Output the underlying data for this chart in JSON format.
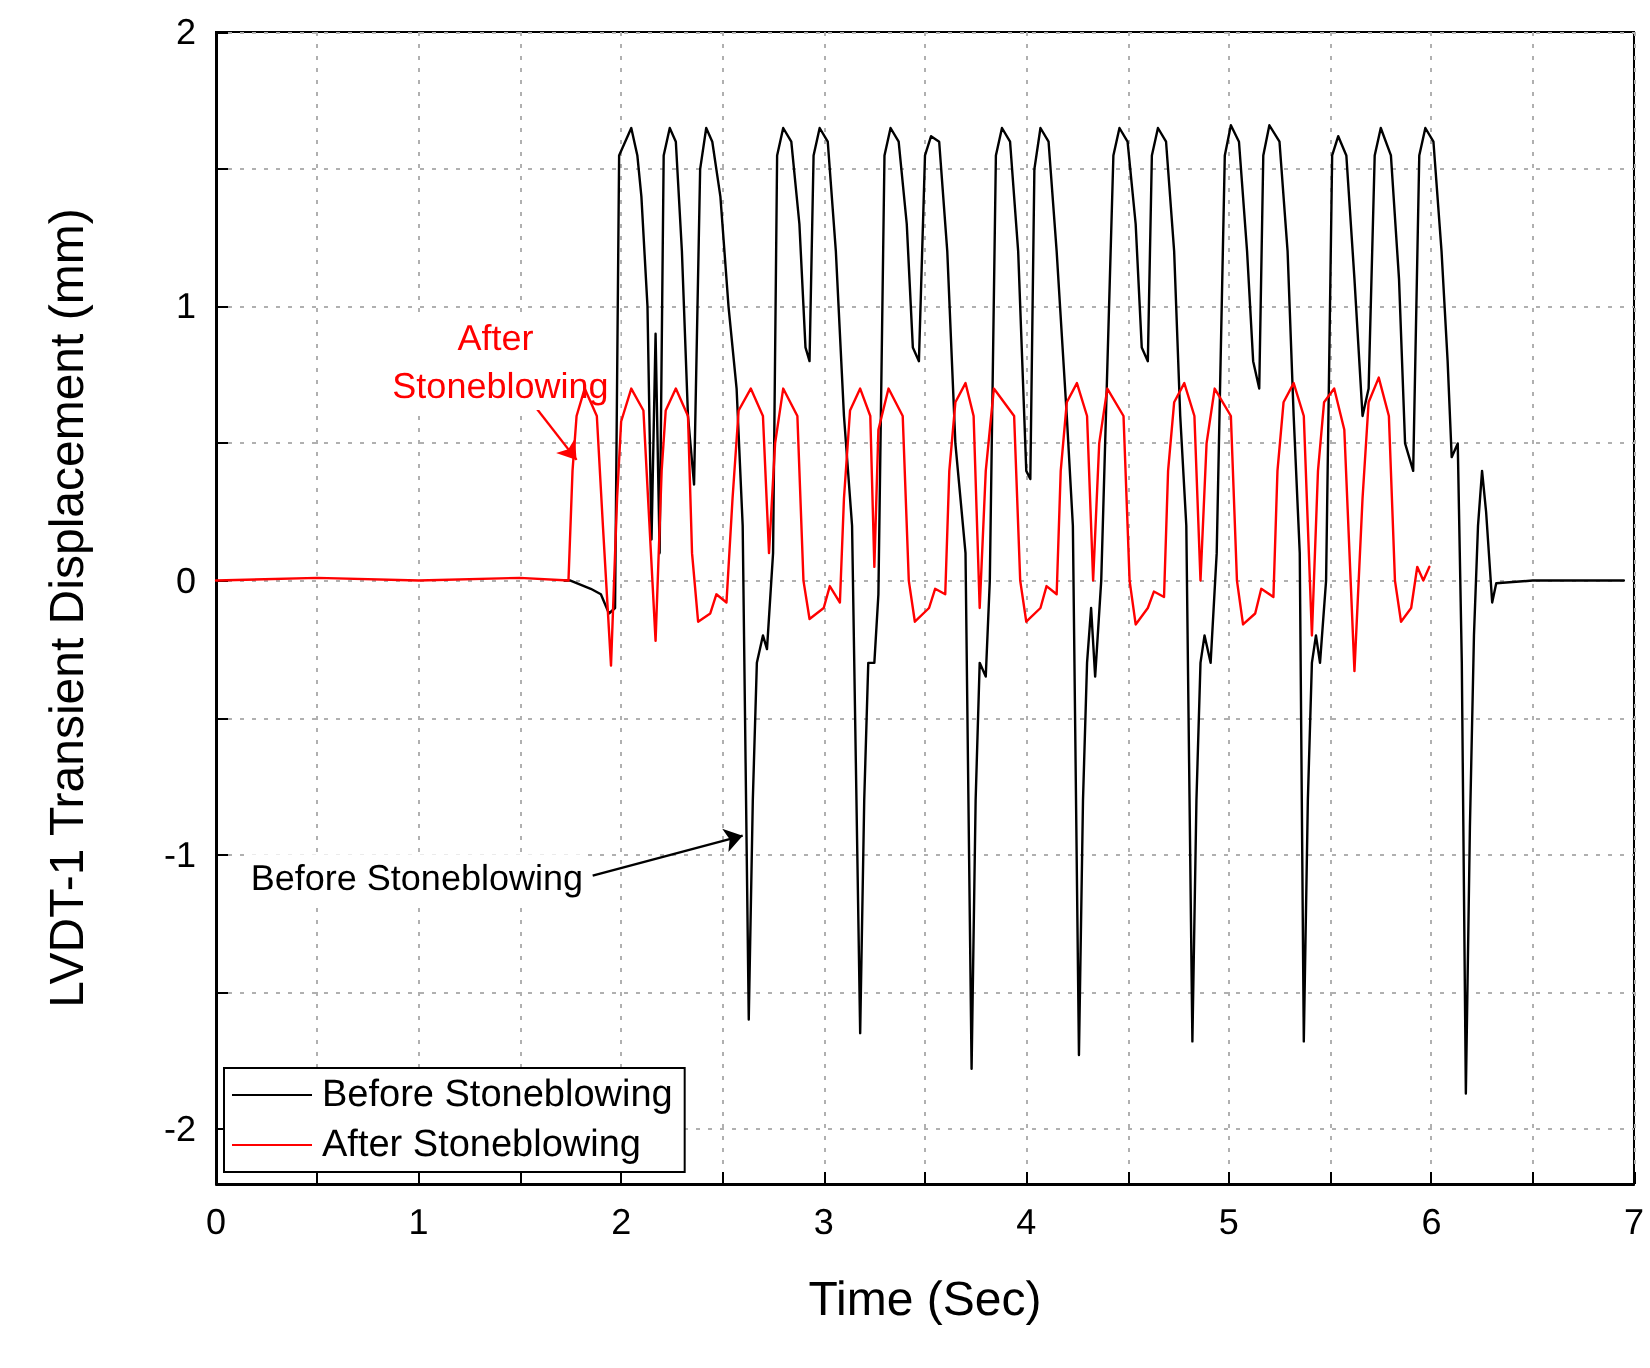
{
  "chart_data": {
    "type": "line",
    "xlabel": "Time (Sec)",
    "ylabel": "LVDT-1 Transient Displacement (mm)",
    "xlim": [
      0,
      7
    ],
    "ylim": [
      -2.2,
      2
    ],
    "xticks": [
      0,
      {
        "value": 0.5,
        "label": null
      },
      1,
      {
        "value": 1.5,
        "label": null
      },
      2,
      {
        "value": 2.5,
        "label": null
      },
      3,
      {
        "value": 3.5,
        "label": null
      },
      4,
      {
        "value": 4.5,
        "label": null
      },
      5,
      {
        "value": 5.5,
        "label": null
      },
      6,
      {
        "value": 6.5,
        "label": null
      },
      7
    ],
    "yticks": [
      -2,
      {
        "value": -1.5,
        "label": null
      },
      -1,
      {
        "value": -0.5,
        "label": null
      },
      0,
      {
        "value": 0.5,
        "label": null
      },
      1,
      {
        "value": 1.5,
        "label": null
      },
      2
    ],
    "grid": true,
    "legend": "bottom left",
    "marker": "none",
    "line_style": "solid",
    "annotations": [
      {
        "text": "Before Stoneblowing",
        "x": 2.6,
        "y": -0.93
      },
      {
        "text": "After Stoneblowing",
        "x": 1.78,
        "y": 0.44
      }
    ],
    "series": [
      {
        "name": "Before Stoneblowing",
        "color": "#000000",
        "x": [
          1.72,
          1.75,
          1.85,
          1.9,
          1.94,
          1.97,
          1.99,
          2.02,
          2.05,
          2.08,
          2.1,
          2.13,
          2.15,
          2.17,
          2.19,
          2.21,
          2.24,
          2.27,
          2.3,
          2.33,
          2.36,
          2.39,
          2.42,
          2.45,
          2.49,
          2.53,
          2.57,
          2.6,
          2.63,
          2.65,
          2.67,
          2.7,
          2.72,
          2.75,
          2.77,
          2.8,
          2.84,
          2.88,
          2.91,
          2.93,
          2.95,
          2.98,
          3.02,
          3.06,
          3.1,
          3.14,
          3.18,
          3.2,
          3.22,
          3.25,
          3.27,
          3.3,
          3.33,
          3.37,
          3.41,
          3.44,
          3.47,
          3.5,
          3.53,
          3.57,
          3.61,
          3.65,
          3.7,
          3.73,
          3.75,
          3.77,
          3.8,
          3.82,
          3.85,
          3.88,
          3.92,
          3.96,
          4.0,
          4.02,
          4.04,
          4.07,
          4.11,
          4.15,
          4.2,
          4.23,
          4.26,
          4.28,
          4.3,
          4.32,
          4.34,
          4.37,
          4.43,
          4.46,
          4.5,
          4.54,
          4.57,
          4.6,
          4.62,
          4.65,
          4.69,
          4.73,
          4.76,
          4.79,
          4.82,
          4.84,
          4.86,
          4.88,
          4.91,
          4.94,
          4.98,
          5.01,
          5.05,
          5.09,
          5.12,
          5.15,
          5.17,
          5.2,
          5.25,
          5.29,
          5.32,
          5.35,
          5.37,
          5.39,
          5.41,
          5.43,
          5.45,
          5.48,
          5.51,
          5.54,
          5.58,
          5.62,
          5.66,
          5.69,
          5.72,
          5.75,
          5.8,
          5.84,
          5.87,
          5.91,
          5.94,
          5.97,
          6.01,
          6.05,
          6.08,
          6.1,
          6.13,
          6.15,
          6.17,
          6.19,
          6.21,
          6.23,
          6.25,
          6.27,
          6.3,
          6.32,
          6.5,
          6.95
        ],
        "values": [
          0,
          0,
          -0.03,
          -0.05,
          -0.12,
          -0.1,
          1.55,
          1.6,
          1.65,
          1.55,
          1.4,
          1.0,
          0.15,
          0.9,
          0.1,
          1.55,
          1.65,
          1.6,
          1.2,
          0.6,
          0.35,
          1.5,
          1.65,
          1.6,
          1.4,
          1.0,
          0.7,
          0.2,
          -1.6,
          -0.8,
          -0.3,
          -0.2,
          -0.25,
          0.1,
          1.55,
          1.65,
          1.6,
          1.3,
          0.85,
          0.8,
          1.55,
          1.65,
          1.6,
          1.2,
          0.6,
          0.2,
          -1.65,
          -0.8,
          -0.3,
          -0.3,
          -0.05,
          1.55,
          1.65,
          1.6,
          1.3,
          0.85,
          0.8,
          1.55,
          1.62,
          1.6,
          1.2,
          0.5,
          0.1,
          -1.78,
          -0.8,
          -0.3,
          -0.35,
          0.0,
          1.55,
          1.65,
          1.6,
          1.2,
          0.4,
          0.37,
          1.5,
          1.65,
          1.6,
          1.2,
          0.6,
          0.2,
          -1.73,
          -0.8,
          -0.3,
          -0.1,
          -0.35,
          0.0,
          1.55,
          1.65,
          1.6,
          1.3,
          0.85,
          0.8,
          1.55,
          1.65,
          1.6,
          1.2,
          0.6,
          0.2,
          -1.68,
          -0.8,
          -0.3,
          -0.2,
          -0.3,
          0.1,
          1.55,
          1.66,
          1.6,
          1.2,
          0.8,
          0.7,
          1.55,
          1.66,
          1.6,
          1.2,
          0.6,
          0.1,
          -1.68,
          -0.8,
          -0.3,
          -0.2,
          -0.3,
          0.0,
          1.55,
          1.62,
          1.55,
          1.1,
          0.6,
          0.7,
          1.55,
          1.65,
          1.55,
          1.1,
          0.5,
          0.4,
          1.55,
          1.65,
          1.6,
          1.2,
          0.8,
          0.45,
          0.5,
          -0.3,
          -1.87,
          -0.9,
          -0.2,
          0.2,
          0.4,
          0.25,
          -0.08,
          -0.01,
          0,
          0
        ]
      },
      {
        "name": "After Stoneblowing",
        "color": "#ff0000",
        "x": [
          0,
          0.5,
          1,
          1.5,
          1.74,
          1.76,
          1.78,
          1.82,
          1.88,
          1.91,
          1.95,
          1.98,
          2.0,
          2.05,
          2.11,
          2.14,
          2.17,
          2.2,
          2.22,
          2.27,
          2.33,
          2.35,
          2.38,
          2.44,
          2.47,
          2.52,
          2.55,
          2.58,
          2.64,
          2.7,
          2.73,
          2.76,
          2.8,
          2.87,
          2.9,
          2.93,
          3.0,
          3.03,
          3.08,
          3.1,
          3.13,
          3.18,
          3.23,
          3.25,
          3.27,
          3.32,
          3.39,
          3.42,
          3.45,
          3.52,
          3.55,
          3.6,
          3.62,
          3.65,
          3.7,
          3.74,
          3.77,
          3.8,
          3.84,
          3.94,
          3.97,
          4.0,
          4.07,
          4.1,
          4.15,
          4.17,
          4.2,
          4.25,
          4.3,
          4.33,
          4.36,
          4.4,
          4.48,
          4.51,
          4.54,
          4.6,
          4.63,
          4.68,
          4.7,
          4.73,
          4.78,
          4.83,
          4.86,
          4.89,
          4.93,
          5.01,
          5.04,
          5.07,
          5.13,
          5.16,
          5.22,
          5.24,
          5.27,
          5.32,
          5.37,
          5.41,
          5.44,
          5.47,
          5.52,
          5.57,
          5.62,
          5.66,
          5.69,
          5.74,
          5.79,
          5.82,
          5.85,
          5.9,
          5.93,
          5.96,
          5.99
        ],
        "values": [
          0,
          0.01,
          0,
          0.01,
          0,
          0.4,
          0.6,
          0.7,
          0.6,
          0.2,
          -0.31,
          0.3,
          0.58,
          0.7,
          0.62,
          0.2,
          -0.22,
          0.4,
          0.62,
          0.7,
          0.6,
          0.1,
          -0.15,
          -0.12,
          -0.05,
          -0.08,
          0.3,
          0.62,
          0.7,
          0.6,
          0.1,
          0.5,
          0.7,
          0.6,
          0.0,
          -0.14,
          -0.1,
          -0.02,
          -0.08,
          0.3,
          0.62,
          0.7,
          0.6,
          0.05,
          0.55,
          0.7,
          0.6,
          0.0,
          -0.15,
          -0.1,
          -0.03,
          -0.05,
          0.4,
          0.65,
          0.72,
          0.6,
          -0.1,
          0.4,
          0.7,
          0.6,
          0.0,
          -0.15,
          -0.1,
          -0.02,
          -0.05,
          0.4,
          0.65,
          0.72,
          0.6,
          0.0,
          0.5,
          0.7,
          0.6,
          0.0,
          -0.16,
          -0.1,
          -0.04,
          -0.06,
          0.4,
          0.65,
          0.72,
          0.6,
          0.0,
          0.5,
          0.7,
          0.6,
          0.0,
          -0.16,
          -0.12,
          -0.03,
          -0.06,
          0.4,
          0.65,
          0.72,
          0.6,
          -0.2,
          0.4,
          0.65,
          0.7,
          0.55,
          -0.33,
          0.3,
          0.65,
          0.74,
          0.6,
          0.0,
          -0.15,
          -0.1,
          0.05,
          0.0,
          0.05
        ]
      }
    ]
  }
}
